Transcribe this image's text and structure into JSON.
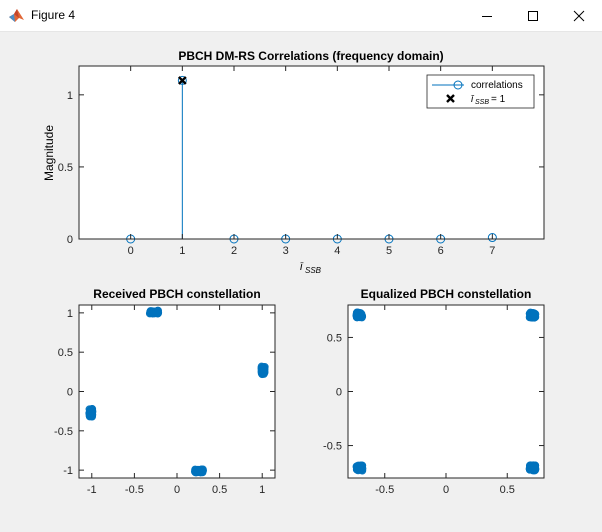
{
  "window": {
    "title": "Figure 4",
    "icons": {
      "app": "matlab-logo-icon",
      "minimize": "minimize-icon",
      "maximize": "maximize-icon",
      "close": "close-icon"
    }
  },
  "chart_data": [
    {
      "type": "stem",
      "title": "PBCH DM-RS Correlations (frequency domain)",
      "xlabel": "ī_SSB",
      "ylabel": "Magnitude",
      "xlim": [
        -1,
        8
      ],
      "ylim": [
        0,
        1.2
      ],
      "xticks": [
        0,
        1,
        2,
        3,
        4,
        5,
        6,
        7
      ],
      "yticks": [
        0,
        0.5,
        1
      ],
      "ytick_labels": [
        "0",
        "0.5",
        "1"
      ],
      "x": [
        0,
        1,
        2,
        3,
        4,
        5,
        6,
        7
      ],
      "values": [
        0,
        1.1,
        0,
        0,
        0,
        0,
        0,
        0.01
      ],
      "marker": {
        "x": 1,
        "y": 1.1
      },
      "legend": {
        "placement": "top-right",
        "entries": [
          "correlations",
          "ī_SSB = 1"
        ]
      },
      "colors": {
        "series": "#0072bd",
        "marker": "#000000"
      }
    },
    {
      "type": "scatter",
      "title": "Received PBCH constellation",
      "xlim": [
        -1.15,
        1.15
      ],
      "ylim": [
        -1.1,
        1.1
      ],
      "xticks": [
        -1,
        -0.5,
        0,
        0.5,
        1
      ],
      "xtick_labels": [
        "-1",
        "-0.5",
        "0",
        "0.5",
        "1"
      ],
      "yticks": [
        -1,
        -0.5,
        0,
        0.5,
        1
      ],
      "ytick_labels": [
        "-1",
        "-0.5",
        "0",
        "0.5",
        "1"
      ],
      "clusters": [
        {
          "x": -0.27,
          "y": 1.01,
          "spread": [
            0.05,
            0.02
          ]
        },
        {
          "x": -1.01,
          "y": -0.27,
          "spread": [
            0.02,
            0.05
          ]
        },
        {
          "x": 1.01,
          "y": 0.27,
          "spread": [
            0.02,
            0.05
          ]
        },
        {
          "x": 0.26,
          "y": -1.01,
          "spread": [
            0.05,
            0.02
          ]
        }
      ],
      "color": "#0072bd"
    },
    {
      "type": "scatter",
      "title": "Equalized PBCH constellation",
      "xlim": [
        -0.8,
        0.8
      ],
      "ylim": [
        -0.8,
        0.8
      ],
      "xticks": [
        -0.5,
        0,
        0.5
      ],
      "xtick_labels": [
        "-0.5",
        "0",
        "0.5"
      ],
      "yticks": [
        -0.5,
        0,
        0.5
      ],
      "ytick_labels": [
        "-0.5",
        "0",
        "0.5"
      ],
      "clusters": [
        {
          "x": -0.707,
          "y": 0.707,
          "spread": [
            0.025,
            0.025
          ]
        },
        {
          "x": 0.707,
          "y": 0.707,
          "spread": [
            0.025,
            0.025
          ]
        },
        {
          "x": -0.707,
          "y": -0.707,
          "spread": [
            0.025,
            0.025
          ]
        },
        {
          "x": 0.707,
          "y": -0.707,
          "spread": [
            0.025,
            0.025
          ]
        }
      ],
      "color": "#0072bd"
    }
  ]
}
